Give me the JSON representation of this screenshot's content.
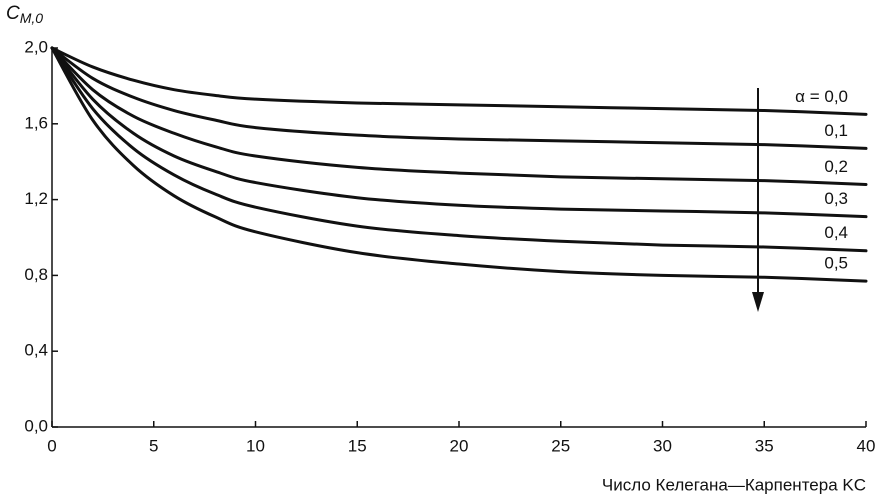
{
  "chart_data": {
    "type": "line",
    "y_label": {
      "main": "C",
      "sub": "M,0"
    },
    "x_label": "Число Келегана—Карпентера KC",
    "x": [
      0,
      2,
      4,
      6,
      8,
      10,
      15,
      20,
      25,
      30,
      35,
      40
    ],
    "series": [
      {
        "name": "α = 0,0",
        "color": "#111111",
        "values": [
          2.0,
          1.9,
          1.83,
          1.78,
          1.75,
          1.73,
          1.71,
          1.7,
          1.69,
          1.68,
          1.67,
          1.65
        ]
      },
      {
        "name": "0,1",
        "color": "#111111",
        "values": [
          2.0,
          1.84,
          1.74,
          1.67,
          1.62,
          1.58,
          1.54,
          1.52,
          1.51,
          1.5,
          1.49,
          1.47
        ]
      },
      {
        "name": "0,2",
        "color": "#111111",
        "values": [
          2.0,
          1.78,
          1.64,
          1.55,
          1.48,
          1.43,
          1.37,
          1.34,
          1.32,
          1.31,
          1.3,
          1.28
        ]
      },
      {
        "name": "0,3",
        "color": "#111111",
        "values": [
          2.0,
          1.73,
          1.55,
          1.43,
          1.35,
          1.29,
          1.21,
          1.17,
          1.15,
          1.14,
          1.13,
          1.11
        ]
      },
      {
        "name": "0,4",
        "color": "#111111",
        "values": [
          2.0,
          1.68,
          1.47,
          1.33,
          1.23,
          1.16,
          1.06,
          1.01,
          0.98,
          0.96,
          0.95,
          0.93
        ]
      },
      {
        "name": "0,5",
        "color": "#111111",
        "values": [
          2.0,
          1.62,
          1.38,
          1.22,
          1.11,
          1.03,
          0.92,
          0.86,
          0.82,
          0.8,
          0.79,
          0.77
        ]
      }
    ],
    "xlim": [
      0,
      40
    ],
    "xticks": [
      0,
      5,
      10,
      15,
      20,
      25,
      30,
      35,
      40
    ],
    "ylim": [
      0,
      2.0
    ],
    "yticks": [
      {
        "value": 0,
        "label": "0,0"
      },
      {
        "value": 0.4,
        "label": "0,4"
      },
      {
        "value": 0.8,
        "label": "0,8"
      },
      {
        "value": 1.2,
        "label": "1,2"
      },
      {
        "value": 1.6,
        "label": "1,6"
      },
      {
        "value": 2.0,
        "label": "2,0"
      }
    ],
    "grid": false
  }
}
